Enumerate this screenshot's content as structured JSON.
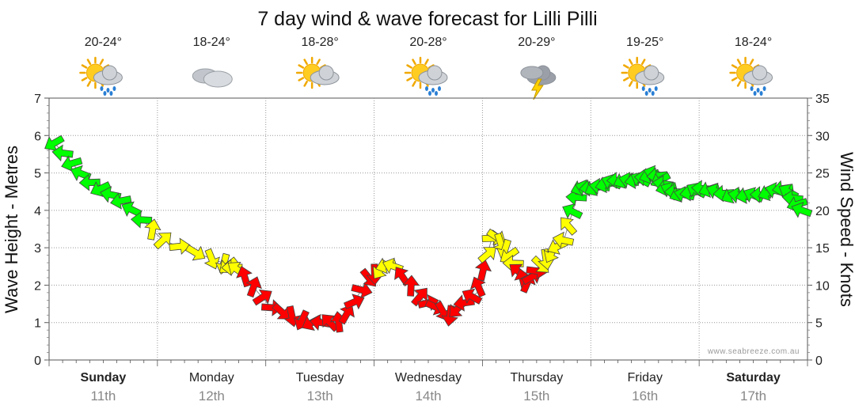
{
  "chart_data": {
    "type": "line",
    "title": "7 day wind & wave forecast for Lilli Pilli",
    "ylabel_left": "Wave Height - Metres",
    "ylabel_right": "Wind Speed - Knots",
    "ylim_left": [
      0,
      7
    ],
    "ylim_right": [
      0,
      35
    ],
    "yticks_left": [
      "0",
      "1",
      "2",
      "3",
      "4",
      "5",
      "6",
      "7"
    ],
    "yticks_right": [
      "0",
      "5",
      "10",
      "15",
      "20",
      "25",
      "30",
      "35"
    ],
    "grid": true,
    "watermark": "www.seabreeze.com.au",
    "days": [
      {
        "name": "Sunday",
        "date": "11th",
        "bold": true,
        "temp": "20-24°",
        "icon": "sun-rain-icon"
      },
      {
        "name": "Monday",
        "date": "12th",
        "bold": false,
        "temp": "18-24°",
        "icon": "cloud-icon"
      },
      {
        "name": "Tuesday",
        "date": "13th",
        "bold": false,
        "temp": "18-28°",
        "icon": "sun-cloud-icon"
      },
      {
        "name": "Wednesday",
        "date": "14th",
        "bold": false,
        "temp": "20-28°",
        "icon": "sun-rain-icon"
      },
      {
        "name": "Thursday",
        "date": "15th",
        "bold": false,
        "temp": "20-29°",
        "icon": "storm-icon"
      },
      {
        "name": "Friday",
        "date": "16th",
        "bold": false,
        "temp": "19-25°",
        "icon": "sun-rain-icon"
      },
      {
        "name": "Saturday",
        "date": "17th",
        "bold": true,
        "temp": "18-24°",
        "icon": "sun-rain-icon"
      }
    ],
    "wind_series": {
      "name": "Wind Speed (knots)",
      "day_offsets": [
        0.05,
        0.35,
        0.7,
        1.05,
        1.6,
        1.75,
        2.05,
        2.4,
        2.7,
        2.95,
        3.15,
        3.45,
        3.7,
        3.95,
        4.1,
        4.25,
        4.4,
        4.55,
        4.75,
        4.9,
        5.05,
        5.25,
        5.45,
        5.6,
        5.7,
        5.85,
        6.05,
        6.3,
        6.55,
        6.8,
        6.95
      ],
      "values": [
        29,
        24,
        21,
        16,
        13,
        12,
        7,
        5,
        5,
        11,
        13,
        8,
        6,
        9,
        17,
        14,
        10,
        13,
        16,
        23,
        23,
        24,
        24,
        25,
        23,
        22,
        23,
        22,
        22,
        23,
        20
      ],
      "colors": {
        "low": "#ff0000",
        "mid": "#ffff00",
        "high": "#00ff00"
      },
      "color_thresholds_knots": [
        12,
        18
      ]
    },
    "wave_series": {
      "name": "Wave Height (m)",
      "color": "#888888"
    }
  }
}
